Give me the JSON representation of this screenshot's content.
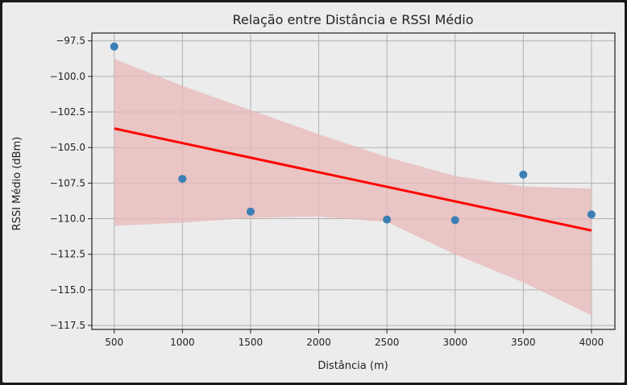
{
  "chart_data": {
    "type": "scatter",
    "title": "Relação entre Distância e RSSI Médio",
    "xlabel": "Distância (m)",
    "ylabel": "RSSI Médio (dBm)",
    "xlim": [
      336,
      4172
    ],
    "ylim": [
      -117.78,
      -96.95
    ],
    "xticks": [
      500,
      1000,
      1500,
      2000,
      2500,
      3000,
      3500,
      4000
    ],
    "xtick_labels": [
      "500",
      "1000",
      "1500",
      "2000",
      "2500",
      "3000",
      "3500",
      "4000"
    ],
    "yticks": [
      -97.5,
      -100.0,
      -102.5,
      -105.0,
      -107.5,
      -110.0,
      -112.5,
      -115.0,
      -117.5
    ],
    "ytick_labels": [
      "−97.5",
      "−100.0",
      "−102.5",
      "−105.0",
      "−107.5",
      "−110.0",
      "−112.5",
      "−115.0",
      "−117.5"
    ],
    "grid": true,
    "points": {
      "x": [
        500,
        1000,
        1500,
        2500,
        3000,
        3500,
        4000
      ],
      "y": [
        -97.9,
        -107.2,
        -109.5,
        -110.06,
        -110.1,
        -106.9,
        -109.7
      ],
      "color": "#3b7fb5"
    },
    "regression": {
      "x": [
        500,
        4000
      ],
      "y": [
        -103.66,
        -110.83
      ],
      "color": "#ff0000"
    },
    "confidence_band": {
      "x": [
        500,
        1000,
        1500,
        2000,
        2500,
        3000,
        3500,
        4000
      ],
      "upper": [
        -98.77,
        -100.66,
        -102.36,
        -104.06,
        -105.67,
        -106.99,
        -107.74,
        -107.88
      ],
      "lower": [
        -110.5,
        -110.28,
        -109.94,
        -109.85,
        -110.23,
        -112.5,
        -114.48,
        -116.78
      ],
      "color": "#e8b8b8"
    }
  }
}
